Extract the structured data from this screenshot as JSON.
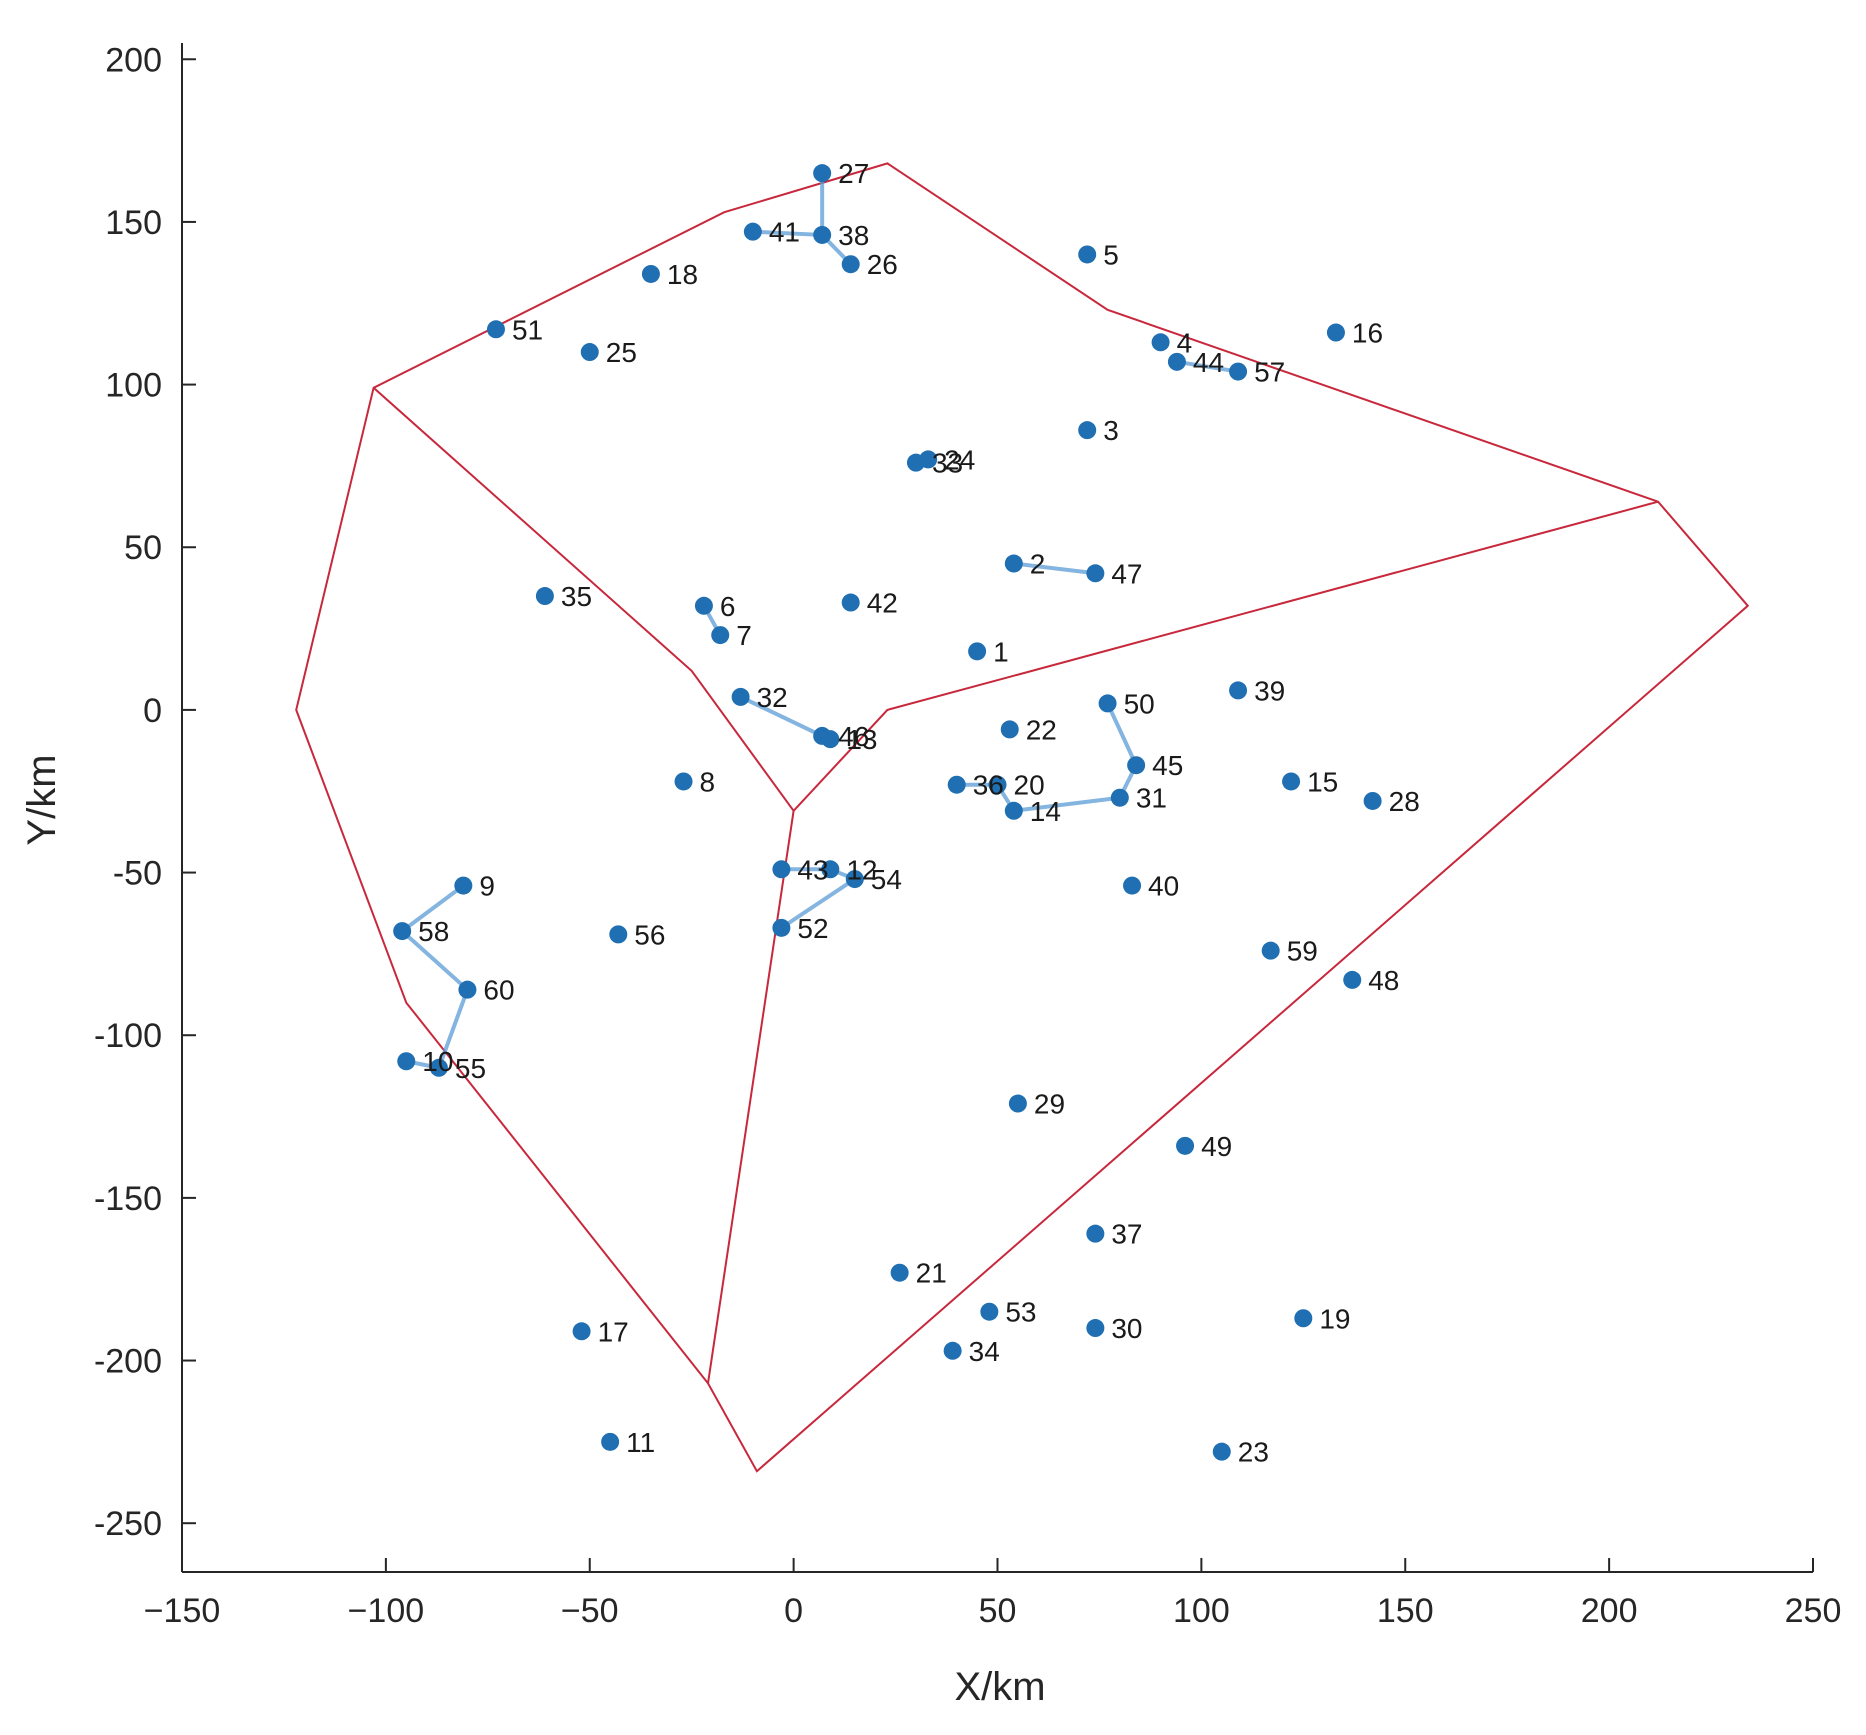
{
  "chart_data": {
    "type": "scatter",
    "title": "",
    "xlabel": "X/km",
    "ylabel": "Y/km",
    "xlim": [
      -150,
      250
    ],
    "ylim": [
      -265,
      205
    ],
    "xticks": [
      -150,
      -100,
      -50,
      0,
      50,
      100,
      150,
      200,
      250
    ],
    "yticks": [
      200,
      150,
      100,
      50,
      0,
      -50,
      -100,
      -150,
      -200,
      -250
    ],
    "xtick_labels": [
      "−150",
      "−100",
      "−50",
      "0",
      "50",
      "100",
      "150",
      "200",
      "250"
    ],
    "ytick_labels": [
      "200",
      "150",
      "100",
      "50",
      "0",
      "-50",
      "-100",
      "-150",
      "-200",
      "-250"
    ],
    "grid": false,
    "colors": {
      "points": "#1f6fb2",
      "links": "#5b9bd5",
      "regions": "#c8283c",
      "axis": "#262626"
    },
    "points": [
      {
        "id": "1",
        "x": 45,
        "y": 18
      },
      {
        "id": "2",
        "x": 54,
        "y": 45
      },
      {
        "id": "3",
        "x": 72,
        "y": 86
      },
      {
        "id": "4",
        "x": 90,
        "y": 113
      },
      {
        "id": "5",
        "x": 72,
        "y": 140
      },
      {
        "id": "6",
        "x": -22,
        "y": 32
      },
      {
        "id": "7",
        "x": -18,
        "y": 23
      },
      {
        "id": "8",
        "x": -27,
        "y": -22
      },
      {
        "id": "9",
        "x": -81,
        "y": -54
      },
      {
        "id": "10",
        "x": -95,
        "y": -108
      },
      {
        "id": "11",
        "x": -45,
        "y": -225
      },
      {
        "id": "12",
        "x": 9,
        "y": -49
      },
      {
        "id": "13",
        "x": 9,
        "y": -9
      },
      {
        "id": "14",
        "x": 54,
        "y": -31
      },
      {
        "id": "15",
        "x": 122,
        "y": -22
      },
      {
        "id": "16",
        "x": 133,
        "y": 116
      },
      {
        "id": "17",
        "x": -52,
        "y": -191
      },
      {
        "id": "18",
        "x": -35,
        "y": 134
      },
      {
        "id": "19",
        "x": 125,
        "y": -187
      },
      {
        "id": "20",
        "x": 50,
        "y": -23
      },
      {
        "id": "21",
        "x": 26,
        "y": -173
      },
      {
        "id": "22",
        "x": 53,
        "y": -6
      },
      {
        "id": "23",
        "x": 105,
        "y": -228
      },
      {
        "id": "24",
        "x": 33,
        "y": 77
      },
      {
        "id": "25",
        "x": -50,
        "y": 110
      },
      {
        "id": "26",
        "x": 14,
        "y": 137
      },
      {
        "id": "27",
        "x": 7,
        "y": 165
      },
      {
        "id": "28",
        "x": 142,
        "y": -28
      },
      {
        "id": "29",
        "x": 55,
        "y": -121
      },
      {
        "id": "30",
        "x": 74,
        "y": -190
      },
      {
        "id": "31",
        "x": 80,
        "y": -27
      },
      {
        "id": "32",
        "x": -13,
        "y": 4
      },
      {
        "id": "33",
        "x": 30,
        "y": 76
      },
      {
        "id": "34",
        "x": 39,
        "y": -197
      },
      {
        "id": "35",
        "x": -61,
        "y": 35
      },
      {
        "id": "36",
        "x": 40,
        "y": -23
      },
      {
        "id": "37",
        "x": 74,
        "y": -161
      },
      {
        "id": "38",
        "x": 7,
        "y": 146
      },
      {
        "id": "39",
        "x": 109,
        "y": 6
      },
      {
        "id": "40",
        "x": 83,
        "y": -54
      },
      {
        "id": "41",
        "x": -10,
        "y": 147
      },
      {
        "id": "42",
        "x": 14,
        "y": 33
      },
      {
        "id": "43",
        "x": -3,
        "y": -49
      },
      {
        "id": "44",
        "x": 94,
        "y": 107
      },
      {
        "id": "45",
        "x": 84,
        "y": -17
      },
      {
        "id": "46",
        "x": 7,
        "y": -8
      },
      {
        "id": "47",
        "x": 74,
        "y": 42
      },
      {
        "id": "48",
        "x": 137,
        "y": -83
      },
      {
        "id": "49",
        "x": 96,
        "y": -134
      },
      {
        "id": "50",
        "x": 77,
        "y": 2
      },
      {
        "id": "51",
        "x": -73,
        "y": 117
      },
      {
        "id": "52",
        "x": -3,
        "y": -67
      },
      {
        "id": "53",
        "x": 48,
        "y": -185
      },
      {
        "id": "54",
        "x": 15,
        "y": -52
      },
      {
        "id": "55",
        "x": -87,
        "y": -110
      },
      {
        "id": "56",
        "x": -43,
        "y": -69
      },
      {
        "id": "57",
        "x": 109,
        "y": 104
      },
      {
        "id": "58",
        "x": -96,
        "y": -68
      },
      {
        "id": "59",
        "x": 117,
        "y": -74
      },
      {
        "id": "60",
        "x": -80,
        "y": -86
      }
    ],
    "links": [
      [
        "27",
        "38"
      ],
      [
        "38",
        "26"
      ],
      [
        "41",
        "38"
      ],
      [
        "2",
        "47"
      ],
      [
        "6",
        "7"
      ],
      [
        "32",
        "46"
      ],
      [
        "46",
        "13"
      ],
      [
        "50",
        "45"
      ],
      [
        "45",
        "31"
      ],
      [
        "31",
        "14"
      ],
      [
        "14",
        "20"
      ],
      [
        "20",
        "36"
      ],
      [
        "43",
        "12"
      ],
      [
        "12",
        "54"
      ],
      [
        "54",
        "52"
      ],
      [
        "9",
        "58"
      ],
      [
        "58",
        "60"
      ],
      [
        "60",
        "55"
      ],
      [
        "55",
        "10"
      ],
      [
        "24",
        "33"
      ],
      [
        "44",
        "57"
      ]
    ],
    "regions": [
      [
        [
          -103,
          99
        ],
        [
          -17,
          153
        ],
        [
          23,
          168
        ],
        [
          77,
          123
        ],
        [
          212,
          64
        ],
        [
          234,
          32
        ],
        [
          -9,
          -234
        ],
        [
          -21,
          -207
        ],
        [
          -95,
          -90
        ],
        [
          -122,
          0
        ]
      ],
      [
        [
          -103,
          99
        ],
        [
          -25,
          12
        ],
        [
          0,
          -31
        ],
        [
          23,
          0
        ],
        [
          212,
          64
        ]
      ],
      [
        [
          0,
          -31
        ],
        [
          -21,
          -207
        ]
      ]
    ]
  }
}
